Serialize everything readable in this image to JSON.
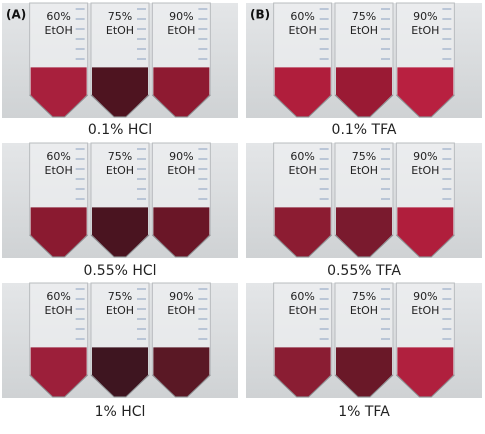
{
  "panels": [
    {
      "label": "(A)",
      "rows": [
        {
          "caption": "0.1% HCl",
          "tubes": [
            {
              "percent": "60%",
              "solvent": "EtOH",
              "liquid": "#a8203d"
            },
            {
              "percent": "75%",
              "solvent": "EtOH",
              "liquid": "#4e1420"
            },
            {
              "percent": "90%",
              "solvent": "EtOH",
              "liquid": "#8e1a31"
            }
          ]
        },
        {
          "caption": "0.55% HCl",
          "tubes": [
            {
              "percent": "60%",
              "solvent": "EtOH",
              "liquid": "#8a1a30"
            },
            {
              "percent": "75%",
              "solvent": "EtOH",
              "liquid": "#4a1420"
            },
            {
              "percent": "90%",
              "solvent": "EtOH",
              "liquid": "#6a1627"
            }
          ]
        },
        {
          "caption": "1% HCl",
          "tubes": [
            {
              "percent": "60%",
              "solvent": "EtOH",
              "liquid": "#9c1f3a"
            },
            {
              "percent": "75%",
              "solvent": "EtOH",
              "liquid": "#3e1520"
            },
            {
              "percent": "90%",
              "solvent": "EtOH",
              "liquid": "#5a1825"
            }
          ]
        }
      ]
    },
    {
      "label": "(B)",
      "rows": [
        {
          "caption": "0.1% TFA",
          "tubes": [
            {
              "percent": "60%",
              "solvent": "EtOH",
              "liquid": "#b01e3c"
            },
            {
              "percent": "75%",
              "solvent": "EtOH",
              "liquid": "#9a1a34"
            },
            {
              "percent": "90%",
              "solvent": "EtOH",
              "liquid": "#b82040"
            }
          ]
        },
        {
          "caption": "0.55% TFA",
          "tubes": [
            {
              "percent": "60%",
              "solvent": "EtOH",
              "liquid": "#8c1c32"
            },
            {
              "percent": "75%",
              "solvent": "EtOH",
              "liquid": "#7a1a2e"
            },
            {
              "percent": "90%",
              "solvent": "EtOH",
              "liquid": "#b01e3c"
            }
          ]
        },
        {
          "caption": "1% TFA",
          "tubes": [
            {
              "percent": "60%",
              "solvent": "EtOH",
              "liquid": "#8a1d33"
            },
            {
              "percent": "75%",
              "solvent": "EtOH",
              "liquid": "#6a1828"
            },
            {
              "percent": "90%",
              "solvent": "EtOH",
              "liquid": "#b0203e"
            }
          ]
        }
      ]
    }
  ]
}
